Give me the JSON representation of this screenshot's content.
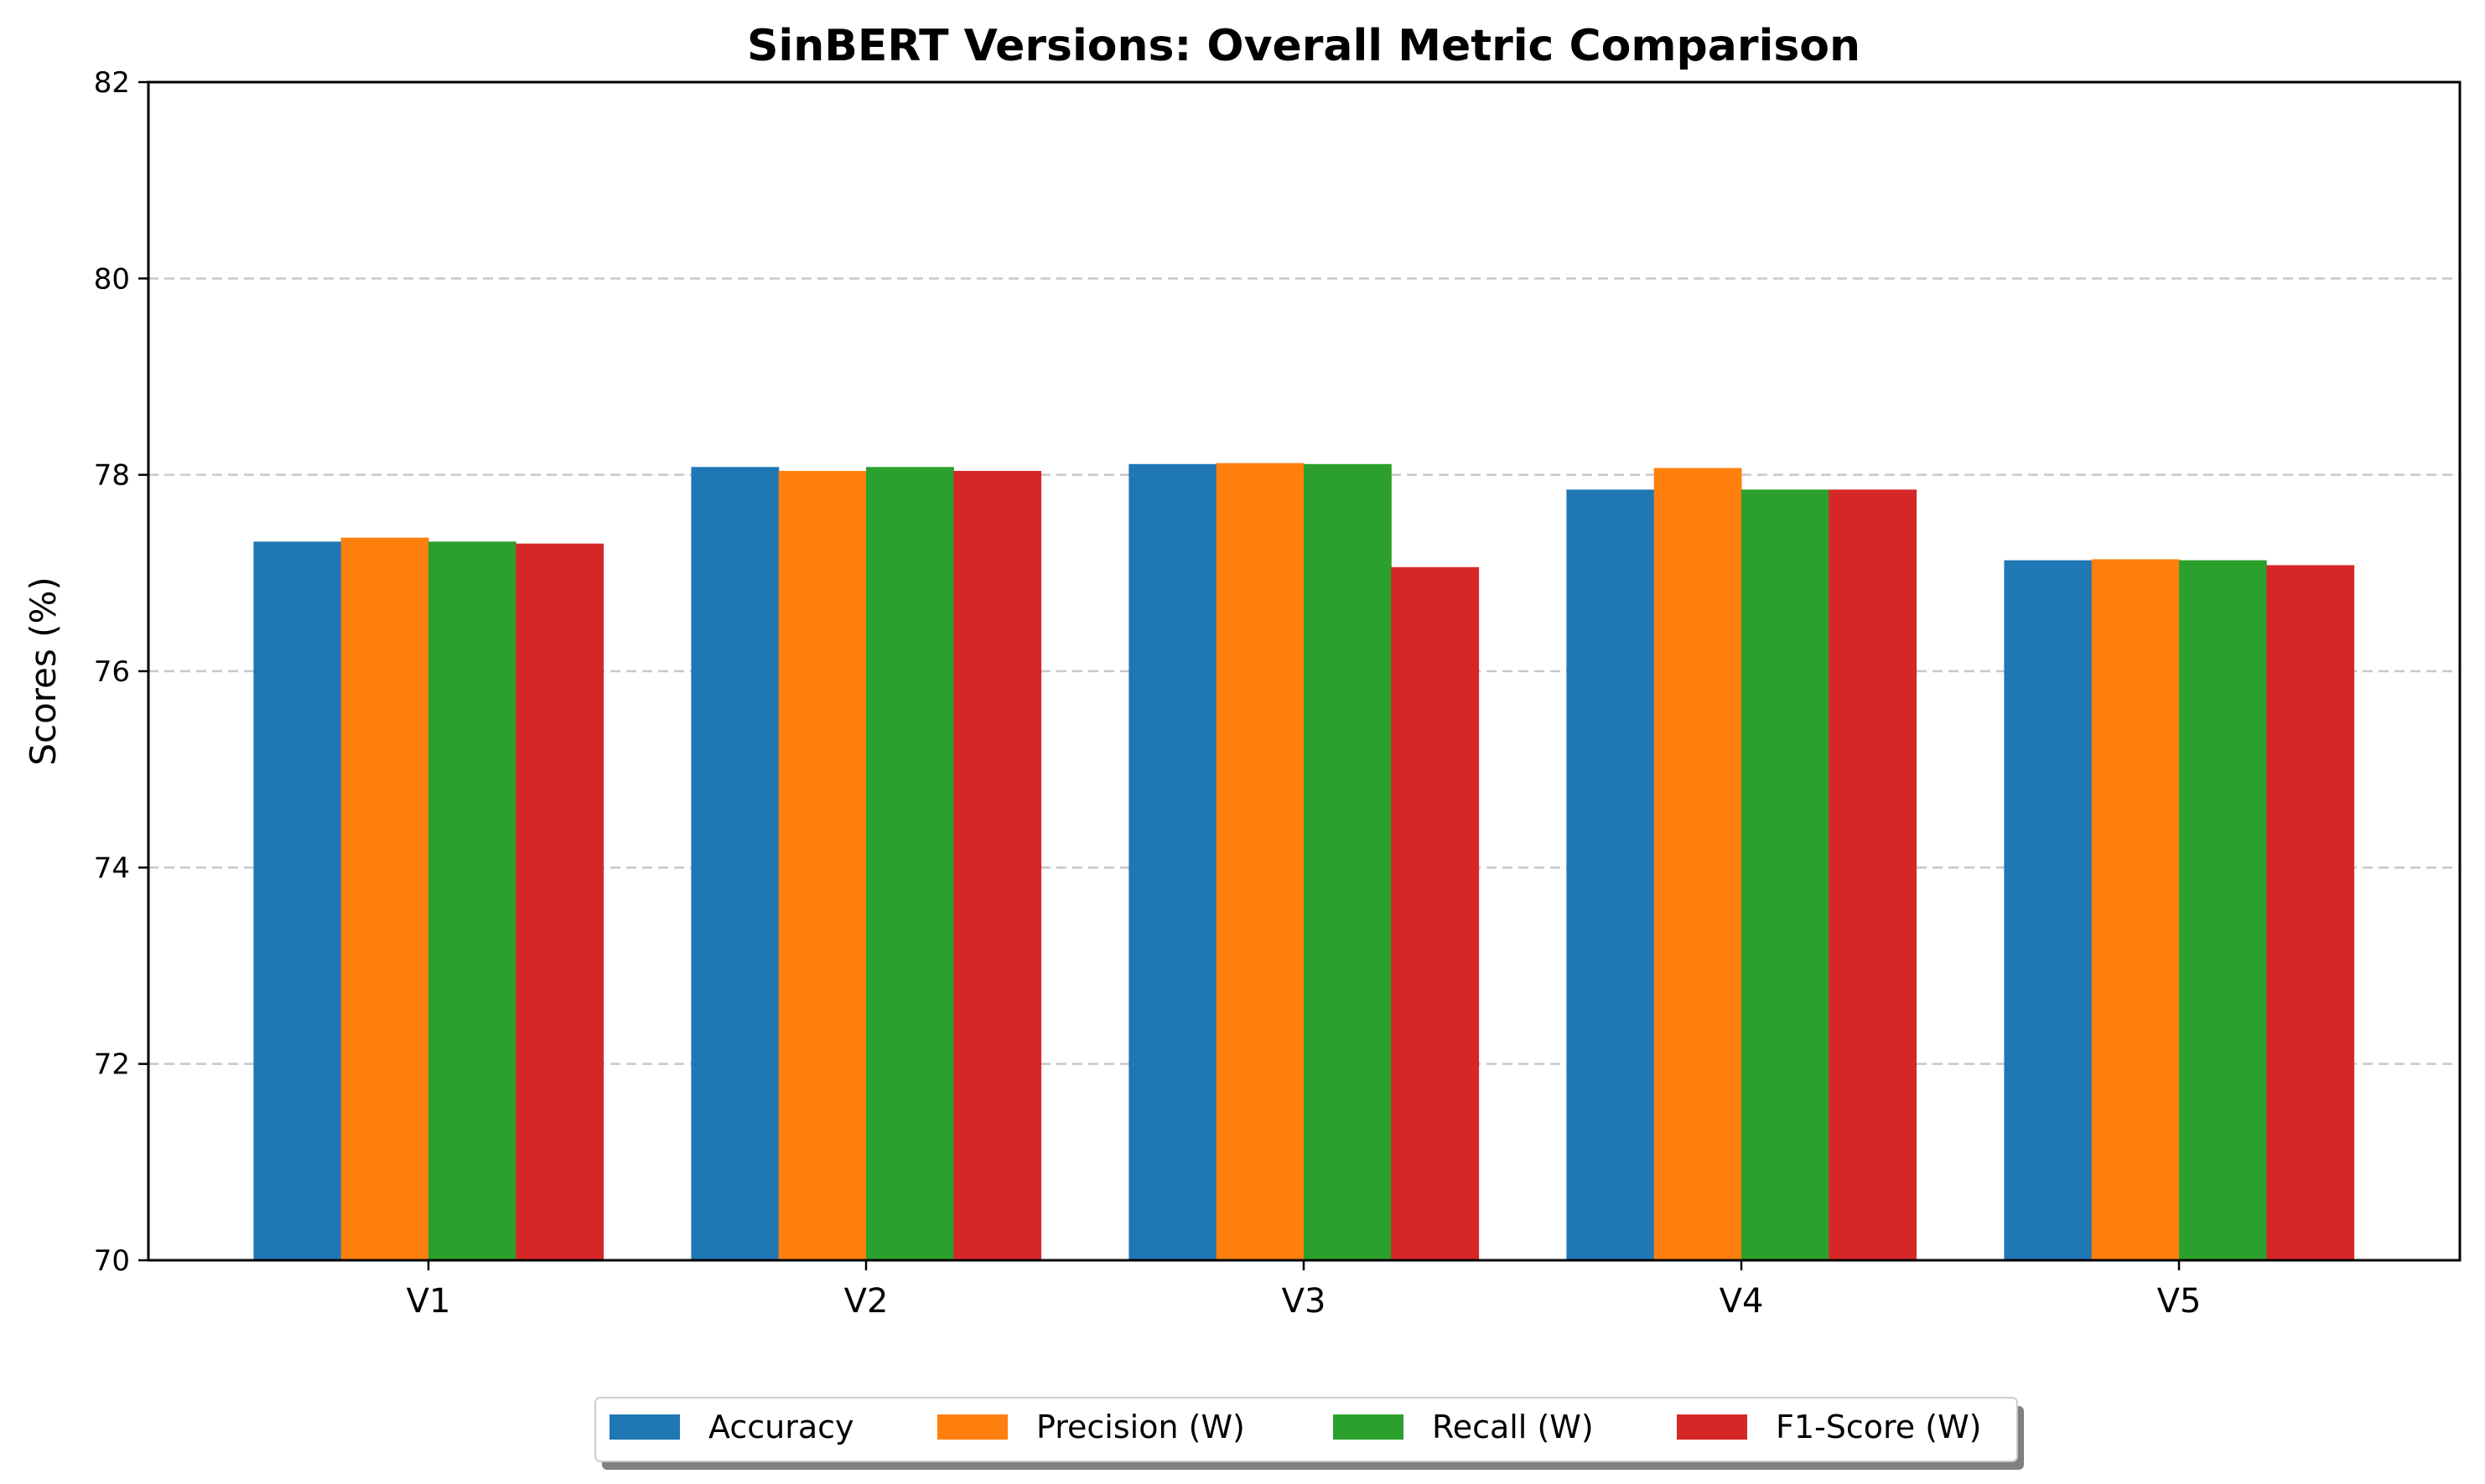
{
  "chart_data": {
    "type": "bar",
    "title": "SinBERT Versions: Overall Metric Comparison",
    "xlabel": "",
    "ylabel": "Scores (%)",
    "ylim": [
      70,
      82
    ],
    "yticks": [
      70,
      72,
      74,
      76,
      78,
      80,
      82
    ],
    "grid": {
      "axis": "y",
      "style": "dashed",
      "color": "#c8c8c8"
    },
    "categories": [
      "V1",
      "V2",
      "V3",
      "V4",
      "V5"
    ],
    "series": [
      {
        "name": "Accuracy",
        "color": "#1f77b4",
        "values": [
          77.32,
          78.08,
          78.11,
          77.85,
          77.13
        ]
      },
      {
        "name": "Precision (W)",
        "color": "#ff7f0e",
        "values": [
          77.36,
          78.04,
          78.12,
          78.07,
          77.14
        ]
      },
      {
        "name": "Recall (W)",
        "color": "#2ca02c",
        "values": [
          77.32,
          78.08,
          78.11,
          77.85,
          77.13
        ]
      },
      {
        "name": "F1-Score (W)",
        "color": "#d62728",
        "values": [
          77.3,
          78.04,
          77.06,
          77.85,
          77.08
        ]
      }
    ],
    "legend": {
      "position": "bottom-center",
      "ncol": 4,
      "shadow": true
    }
  }
}
